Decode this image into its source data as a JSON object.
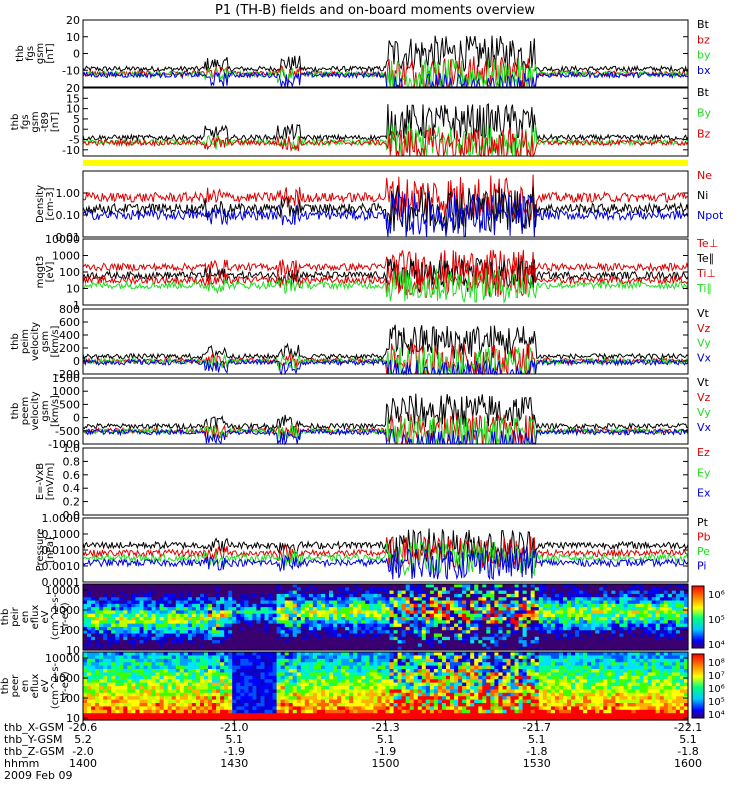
{
  "title": "P1 (TH-B) fields and on-board moments overview",
  "colors": {
    "black": "#000000",
    "red": "#dd0000",
    "green": "#22dd22",
    "blue": "#0000dd",
    "yellow": "#ffff00"
  },
  "chart_data": [
    {
      "type": "line",
      "ylabel": [
        "thb",
        "fgs",
        "gsm",
        "[nT]"
      ],
      "ylim": [
        -20,
        20
      ],
      "yticks": [
        "20",
        "10",
        "0",
        "-10"
      ],
      "legend": [
        {
          "name": "Bt",
          "color": "#000000"
        },
        {
          "name": "bz",
          "color": "#dd0000"
        },
        {
          "name": "by",
          "color": "#22dd22"
        },
        {
          "name": "bx",
          "color": "#0000dd"
        }
      ]
    },
    {
      "type": "line",
      "ylabel": [
        "thb",
        "fgs",
        "gsm",
        "-t89",
        "[nT]"
      ],
      "ylim": [
        -13,
        20
      ],
      "yticks": [
        "20",
        "15",
        "10",
        "5",
        "0",
        "-5",
        "-10"
      ],
      "legend": [
        {
          "name": "Bt",
          "color": "#000000"
        },
        {
          "name": "By",
          "color": "#22dd22"
        },
        {
          "name": "Bz",
          "color": "#dd0000"
        }
      ]
    },
    {
      "type": "bar",
      "description_label": "",
      "color": "#ffff00"
    },
    {
      "type": "line",
      "log_scale": true,
      "ylabel": [
        "Density",
        "[cm-3]"
      ],
      "ylim": [
        0.01,
        10
      ],
      "yticks": [
        "1.00",
        "0.10",
        "0.01"
      ],
      "legend": [
        {
          "name": "Ne",
          "color": "#dd0000"
        },
        {
          "name": "Ni",
          "color": "#000000"
        },
        {
          "name": "Npot",
          "color": "#0000dd"
        }
      ]
    },
    {
      "type": "line",
      "log_scale": true,
      "ylabel": [
        "mqgt3",
        "[eV]"
      ],
      "ylim": [
        1,
        10000
      ],
      "yticks": [
        "10000",
        "1000",
        "100",
        "10",
        "1"
      ],
      "legend": [
        {
          "name": "Te⊥",
          "color": "#dd0000"
        },
        {
          "name": "Te∥",
          "color": "#000000"
        },
        {
          "name": "Ti⊥",
          "color": "#dd0000"
        },
        {
          "name": "Ti∥",
          "color": "#22dd22"
        }
      ]
    },
    {
      "type": "line",
      "ylabel": [
        "thb",
        "peim",
        "velocity",
        "gsm",
        "[km/s]"
      ],
      "ylim": [
        -200,
        800
      ],
      "yticks": [
        "800",
        "600",
        "400",
        "200",
        "0",
        "-200"
      ],
      "legend": [
        {
          "name": "Vt",
          "color": "#000000"
        },
        {
          "name": "Vz",
          "color": "#dd0000"
        },
        {
          "name": "Vy",
          "color": "#22dd22"
        },
        {
          "name": "Vx",
          "color": "#0000dd"
        }
      ]
    },
    {
      "type": "line",
      "ylabel": [
        "thb",
        "peem",
        "velocity",
        "gsm",
        "[km/s]"
      ],
      "ylim": [
        -1000,
        1500
      ],
      "yticks": [
        "1500",
        "1000",
        "500",
        "0",
        "-500",
        "-1000"
      ],
      "legend": [
        {
          "name": "Vt",
          "color": "#000000"
        },
        {
          "name": "Vz",
          "color": "#dd0000"
        },
        {
          "name": "Vy",
          "color": "#22dd22"
        },
        {
          "name": "Vx",
          "color": "#0000dd"
        }
      ]
    },
    {
      "type": "line",
      "ylabel": [
        "E=-VxB",
        "[mV/m]"
      ],
      "ylim": [
        0,
        1
      ],
      "yticks": [
        "1.0",
        "0.8",
        "0.6",
        "0.4",
        "0.2",
        "0.0"
      ],
      "legend": [
        {
          "name": "Ez",
          "color": "#dd0000"
        },
        {
          "name": "Ey",
          "color": "#22dd22"
        },
        {
          "name": "Ex",
          "color": "#0000dd"
        }
      ]
    },
    {
      "type": "line",
      "log_scale": true,
      "ylabel": [
        "Pressure",
        "[nPa]"
      ],
      "ylim": [
        0.0001,
        1
      ],
      "yticks": [
        "1.0000",
        "0.1000",
        "0.0100",
        "0.0010",
        "0.0001"
      ],
      "legend": [
        {
          "name": "Pt",
          "color": "#000000"
        },
        {
          "name": "Pb",
          "color": "#dd0000"
        },
        {
          "name": "Pe",
          "color": "#22dd22"
        },
        {
          "name": "Pi",
          "color": "#0000dd"
        }
      ]
    },
    {
      "type": "heatmap",
      "log_scale": true,
      "ylabel": [
        "thb",
        "peir",
        "en",
        "eflux",
        "eV",
        "(cm^2-s-",
        "sr-eV)"
      ],
      "ylim": [
        10,
        20000
      ],
      "yticks": [
        "10000",
        "1000",
        "100",
        "10"
      ],
      "colorbar_ticks": [
        "10⁶",
        "10⁵",
        "10⁴"
      ]
    },
    {
      "type": "heatmap",
      "log_scale": true,
      "ylabel": [
        "thb",
        "peer",
        "en",
        "eflux",
        "eV",
        "(cm^2-s-",
        "sr-eV)"
      ],
      "ylim": [
        8,
        20000
      ],
      "yticks": [
        "10000",
        "1000",
        "100",
        "10"
      ],
      "colorbar_ticks": [
        "10⁸",
        "10⁷",
        "10⁶",
        "10⁵",
        "10⁴"
      ]
    }
  ],
  "x_axis": {
    "row_labels": [
      "thb_X-GSM",
      "thb_Y-GSM",
      "thb_Z-GSM",
      "hhmm",
      "2009 Feb 09"
    ],
    "ticks": [
      {
        "x_gsm": "-20.6",
        "y_gsm": "5.2",
        "z_gsm": "-2.0",
        "hhmm": "1400"
      },
      {
        "x_gsm": "-21.0",
        "y_gsm": "5.1",
        "z_gsm": "-1.9",
        "hhmm": "1430"
      },
      {
        "x_gsm": "-21.3",
        "y_gsm": "5.1",
        "z_gsm": "-1.9",
        "hhmm": "1500"
      },
      {
        "x_gsm": "-21.7",
        "y_gsm": "5.1",
        "z_gsm": "-1.8",
        "hhmm": "1530"
      },
      {
        "x_gsm": "-22.1",
        "y_gsm": "5.1",
        "z_gsm": "-1.8",
        "hhmm": "1600"
      }
    ]
  }
}
